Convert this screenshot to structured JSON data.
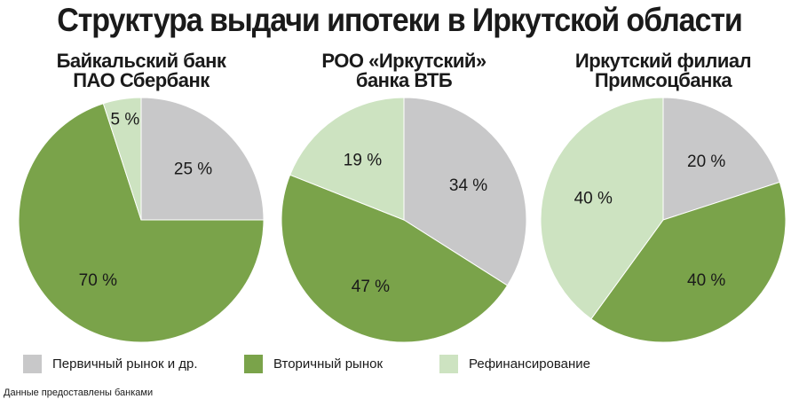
{
  "title": "Структура выдачи ипотеки в Иркутской области",
  "colors": {
    "primary": "#c8c8c9",
    "secondary": "#7aa34a",
    "refinance": "#cde3c1"
  },
  "legend": [
    "Первичный рынок и др.",
    "Вторичный рынок",
    "Рефинансирование"
  ],
  "note": "Данные предоставлены банками",
  "chart_data": [
    {
      "type": "pie",
      "title_lines": [
        "Байкальский банк",
        "ПАО Сбербанк"
      ],
      "labels": [
        "Первичный рынок и др.",
        "Вторичный рынок",
        "Рефинансирование"
      ],
      "values": [
        25,
        70,
        5
      ],
      "value_labels": [
        "25 %",
        "70 %",
        "5 %"
      ]
    },
    {
      "type": "pie",
      "title_lines": [
        "РОО «Иркутский»",
        "банка ВТБ"
      ],
      "labels": [
        "Первичный рынок и др.",
        "Вторичный рынок",
        "Рефинансирование"
      ],
      "values": [
        34,
        47,
        19
      ],
      "value_labels": [
        "34 %",
        "47 %",
        "19 %"
      ]
    },
    {
      "type": "pie",
      "title_lines": [
        "Иркутский филиал",
        "Примсоцбанка"
      ],
      "labels": [
        "Первичный рынок и др.",
        "Вторичный рынок",
        "Рефинансирование"
      ],
      "values": [
        20,
        40,
        40
      ],
      "value_labels": [
        "20 %",
        "40 %",
        "40 %"
      ]
    }
  ]
}
